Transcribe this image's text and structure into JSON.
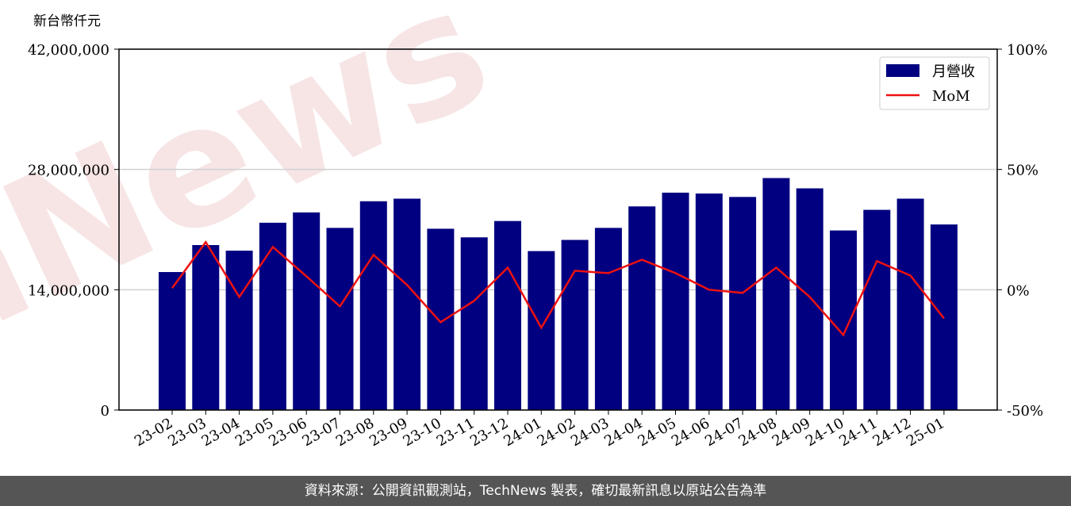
{
  "chart_data": {
    "type": "bar_line",
    "y_axis_label": "新台幣仟元",
    "watermark": "TechNews",
    "categories": [
      "23-02",
      "23-03",
      "23-04",
      "23-05",
      "23-06",
      "23-07",
      "23-08",
      "23-09",
      "23-10",
      "23-11",
      "23-12",
      "24-01",
      "24-02",
      "24-03",
      "24-04",
      "24-05",
      "24-06",
      "24-07",
      "24-08",
      "24-09",
      "24-10",
      "24-11",
      "24-12",
      "25-01"
    ],
    "series": [
      {
        "name": "月營收",
        "color": "#000080",
        "type": "bar",
        "values": [
          16060000,
          19200000,
          18550000,
          21800000,
          23000000,
          21200000,
          24300000,
          24600000,
          21100000,
          20100000,
          22000000,
          18500000,
          19800000,
          21200000,
          23700000,
          25300000,
          25200000,
          24800000,
          27000000,
          25800000,
          20900000,
          23300000,
          24600000,
          21600000
        ]
      },
      {
        "name": "MoM",
        "color": "#ee1111",
        "type": "line",
        "axis": "y2",
        "values": [
          0.7,
          19.8,
          -3.0,
          17.8,
          5.6,
          -6.9,
          14.5,
          2.0,
          -13.5,
          -4.6,
          9.2,
          -15.8,
          7.9,
          6.9,
          12.5,
          6.9,
          0,
          -1.3,
          9.2,
          -3.0,
          -18.8,
          11.9,
          5.9,
          -11.9
        ]
      }
    ],
    "ylim": [
      0,
      42000000
    ],
    "yticks": [
      {
        "value": 0,
        "label": "0"
      },
      {
        "value": 14000000,
        "label": "14,000,000"
      },
      {
        "value": 28000000,
        "label": "28,000,000"
      },
      {
        "value": 42000000,
        "label": "42,000,000"
      }
    ],
    "y2lim": [
      -50,
      100
    ],
    "y2ticks": [
      {
        "value": -50,
        "label": "-50%"
      },
      {
        "value": 0,
        "label": "0%"
      },
      {
        "value": 50,
        "label": "50%"
      },
      {
        "value": 100,
        "label": "100%"
      }
    ],
    "grid": true,
    "legend": "upper right"
  },
  "footer": "資料來源：公開資訊觀測站，TechNews 製表，確切最新訊息以原站公告為準"
}
